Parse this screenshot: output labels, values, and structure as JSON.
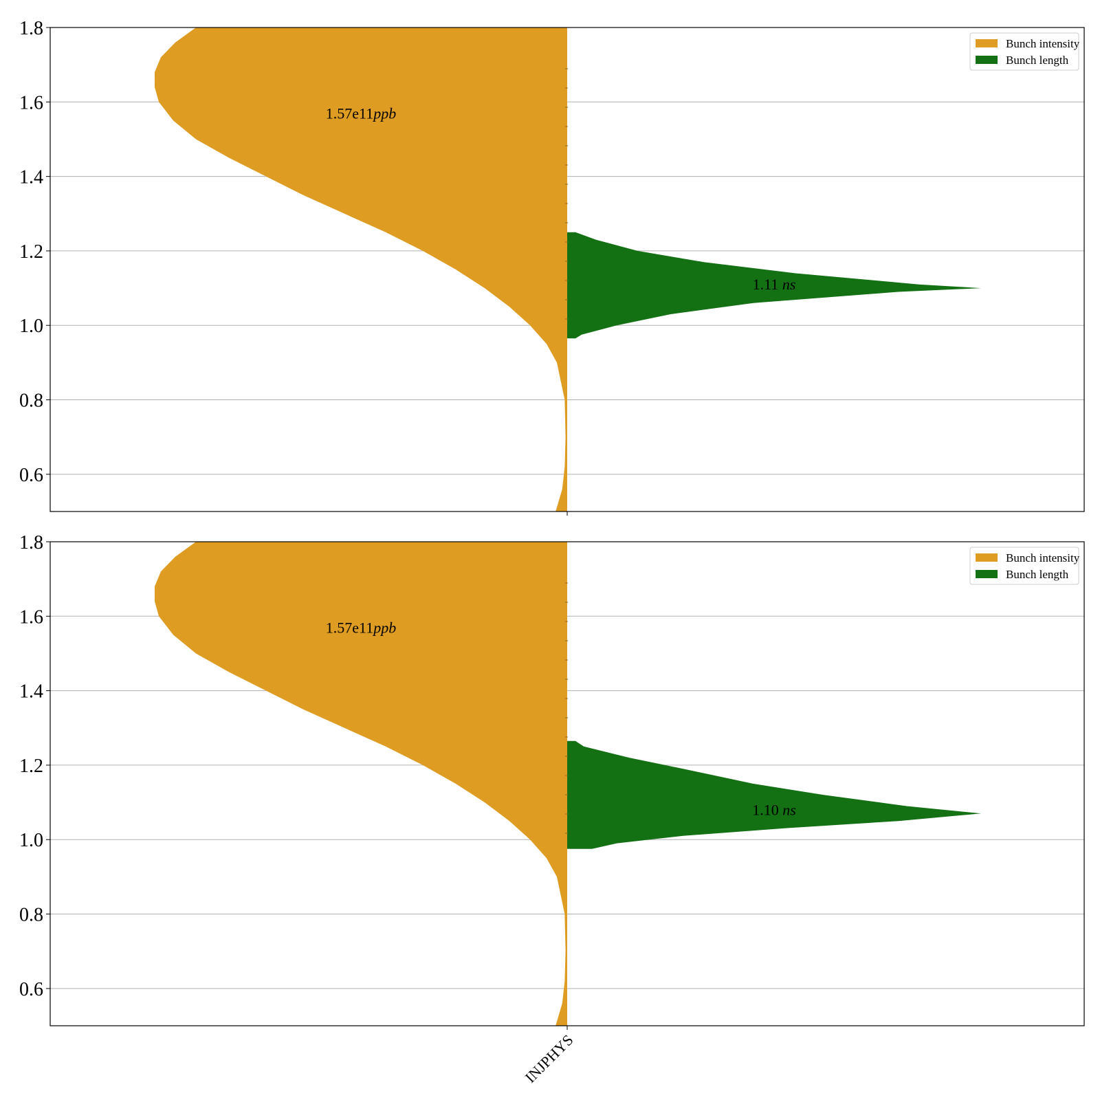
{
  "chart_data": [
    {
      "type": "violin",
      "categories": [
        "INJPHYS"
      ],
      "ylim": [
        0.5,
        1.8
      ],
      "yticks": [
        0.6,
        0.8,
        1.0,
        1.2,
        1.4,
        1.6,
        1.8
      ],
      "grid": true,
      "legend_position": "top-right",
      "series": [
        {
          "name": "Bunch intensity",
          "side": "left",
          "color": "#de9c22",
          "annotation": "1.57e11",
          "unit": "ppb",
          "peak_y": 1.68,
          "y_range": [
            0.5,
            1.8
          ]
        },
        {
          "name": "Bunch length",
          "side": "right",
          "color": "#137013",
          "annotation": "1.11",
          "unit": "ns",
          "peak_y": 1.1,
          "y_range": [
            0.965,
            1.25
          ]
        }
      ]
    },
    {
      "type": "violin",
      "categories": [
        "INJPHYS"
      ],
      "ylim": [
        0.5,
        1.8
      ],
      "yticks": [
        0.6,
        0.8,
        1.0,
        1.2,
        1.4,
        1.6,
        1.8
      ],
      "grid": true,
      "legend_position": "top-right",
      "series": [
        {
          "name": "Bunch intensity",
          "side": "left",
          "color": "#de9c22",
          "annotation": "1.57e11",
          "unit": "ppb",
          "peak_y": 1.68,
          "y_range": [
            0.5,
            1.8
          ]
        },
        {
          "name": "Bunch length",
          "side": "right",
          "color": "#137013",
          "annotation": "1.10",
          "unit": "ns",
          "peak_y": 1.07,
          "y_range": [
            0.975,
            1.265
          ]
        }
      ]
    }
  ]
}
